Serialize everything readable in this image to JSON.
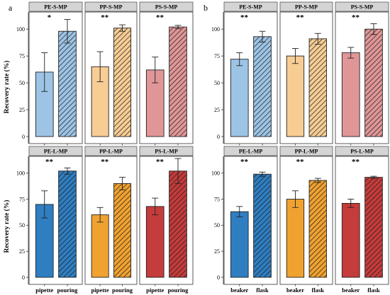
{
  "figure": {
    "panel_labels": [
      "a",
      "b"
    ],
    "ylabel": "Recovery rate (%)"
  },
  "colors": {
    "PE-S": "#9dc4e5",
    "PP-S": "#f7cd94",
    "PS-S": "#e09697",
    "PE-L": "#2f7ec1",
    "PP-L": "#f0a231",
    "PS-L": "#c43c3b",
    "strip_bg": "#d4d4d4",
    "hatch": "#1a1a1a"
  },
  "chart_data": [
    {
      "type": "bar",
      "panel": "a",
      "row": 0,
      "ylabel": "Recovery rate (%)",
      "ylim": [
        0,
        110
      ],
      "yticks": [
        0,
        25,
        50,
        75,
        100
      ],
      "facets": [
        {
          "title": "PE-S-MP",
          "color_key": "PE-S",
          "sig": "*",
          "categories": [
            "pipette",
            "pouring"
          ],
          "values": [
            60,
            98
          ],
          "errors": [
            18,
            11
          ],
          "hatched": [
            false,
            true
          ]
        },
        {
          "title": "PP-S-MP",
          "color_key": "PP-S",
          "sig": "**",
          "categories": [
            "pipette",
            "pouring"
          ],
          "values": [
            65,
            101
          ],
          "errors": [
            14,
            3
          ],
          "hatched": [
            false,
            true
          ]
        },
        {
          "title": "PS-S-MP",
          "color_key": "PS-S",
          "sig": "**",
          "categories": [
            "pipette",
            "pouring"
          ],
          "values": [
            62,
            102
          ],
          "errors": [
            12,
            1.5
          ],
          "hatched": [
            false,
            true
          ]
        }
      ]
    },
    {
      "type": "bar",
      "panel": "a",
      "row": 1,
      "ylabel": "Recovery rate (%)",
      "ylim": [
        0,
        110
      ],
      "yticks": [
        0,
        25,
        50,
        75,
        100
      ],
      "facets": [
        {
          "title": "PE-L-MP",
          "color_key": "PE-L",
          "sig": "**",
          "categories": [
            "pipette",
            "pouring"
          ],
          "values": [
            70,
            102
          ],
          "errors": [
            13,
            3
          ],
          "hatched": [
            false,
            true
          ]
        },
        {
          "title": "PP-L-MP",
          "color_key": "PP-L",
          "sig": "**",
          "categories": [
            "pipette",
            "pouring"
          ],
          "values": [
            60,
            90
          ],
          "errors": [
            7,
            6
          ],
          "hatched": [
            false,
            true
          ]
        },
        {
          "title": "PS-L-MP",
          "color_key": "PS-L",
          "sig": "**",
          "categories": [
            "pipette",
            "pouring"
          ],
          "values": [
            68,
            102
          ],
          "errors": [
            8,
            12
          ],
          "hatched": [
            false,
            true
          ]
        }
      ]
    },
    {
      "type": "bar",
      "panel": "b",
      "row": 0,
      "ylim": [
        0,
        110
      ],
      "yticks": [
        0,
        25,
        50,
        75,
        100
      ],
      "facets": [
        {
          "title": "PE-S-MP",
          "color_key": "PE-S",
          "sig": "**",
          "categories": [
            "beaker",
            "flask"
          ],
          "values": [
            72,
            93
          ],
          "errors": [
            6,
            5
          ],
          "hatched": [
            false,
            true
          ]
        },
        {
          "title": "PP-S-MP",
          "color_key": "PP-S",
          "sig": "**",
          "categories": [
            "beaker",
            "flask"
          ],
          "values": [
            75,
            91
          ],
          "errors": [
            7,
            5
          ],
          "hatched": [
            false,
            true
          ]
        },
        {
          "title": "PS-S-MP",
          "color_key": "PS-S",
          "sig": "**",
          "categories": [
            "beaker",
            "flask"
          ],
          "values": [
            78,
            100
          ],
          "errors": [
            5,
            5
          ],
          "hatched": [
            false,
            true
          ]
        }
      ]
    },
    {
      "type": "bar",
      "panel": "b",
      "row": 1,
      "ylim": [
        0,
        110
      ],
      "yticks": [
        0,
        25,
        50,
        75,
        100
      ],
      "facets": [
        {
          "title": "PE-L-MP",
          "color_key": "PE-L",
          "sig": "**",
          "categories": [
            "beaker",
            "flask"
          ],
          "values": [
            63,
            99
          ],
          "errors": [
            5,
            2
          ],
          "hatched": [
            false,
            true
          ]
        },
        {
          "title": "PP-L-MP",
          "color_key": "PP-L",
          "sig": "**",
          "categories": [
            "beaker",
            "flask"
          ],
          "values": [
            75,
            93
          ],
          "errors": [
            8,
            2
          ],
          "hatched": [
            false,
            true
          ]
        },
        {
          "title": "PS-L-MP",
          "color_key": "PS-L",
          "sig": "**",
          "categories": [
            "beaker",
            "flask"
          ],
          "values": [
            71,
            96
          ],
          "errors": [
            4,
            1
          ],
          "hatched": [
            false,
            true
          ]
        }
      ]
    }
  ]
}
